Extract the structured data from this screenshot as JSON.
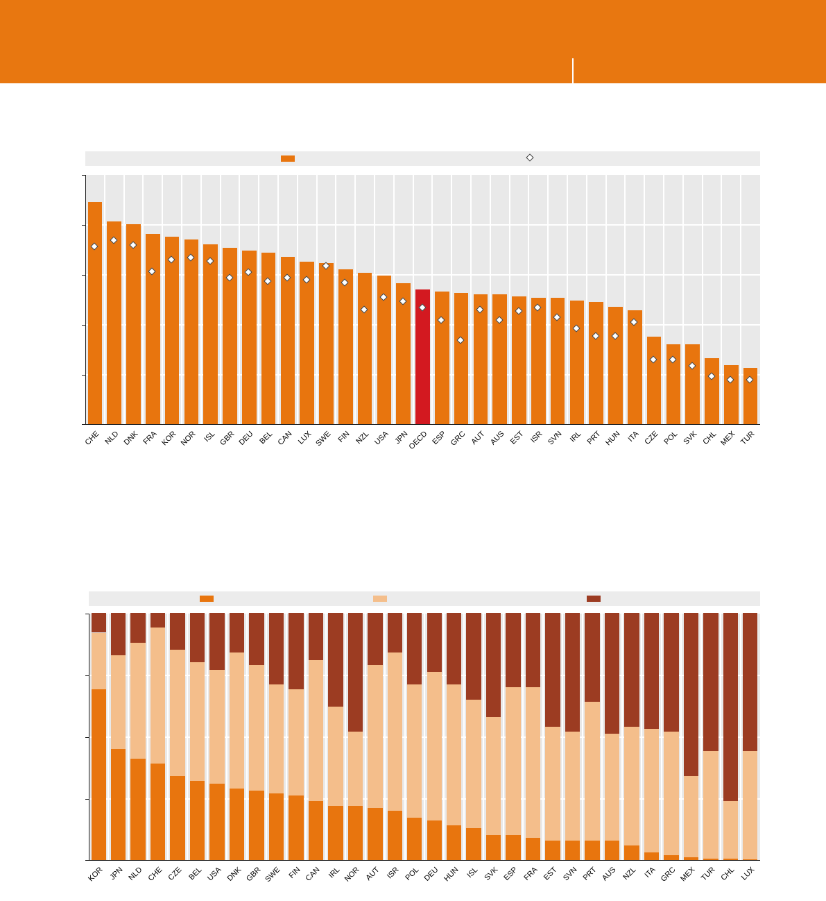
{
  "header": {
    "color": "#E87710",
    "divider_color": "#FFFFFF"
  },
  "colors": {
    "bar_orange": "#E8750E",
    "bar_red": "#D31920",
    "bar_peach": "#F4BE8B",
    "bar_brown": "#9C3C22",
    "plot_bg": "#E9E9E9",
    "legend_bg": "#ECECEC",
    "gridline": "#FFFFFF",
    "axis": "#1A1A1A",
    "diamond_fill": "#FFFFFF",
    "diamond_border": "#3C3C3C"
  },
  "chart_data": [
    {
      "type": "bar",
      "title": "",
      "xlabel": "",
      "ylabel": "",
      "ylim": [
        0,
        10
      ],
      "y_divisions": 5,
      "grid": true,
      "legend_position": "top",
      "legend": [
        {
          "marker": "bar",
          "color": "#E8750E",
          "label": ""
        },
        {
          "marker": "diamond",
          "color": "#FFFFFF",
          "label": ""
        }
      ],
      "highlight_category": "OECD",
      "highlight_color": "#D31920",
      "categories": [
        "CHE",
        "NLD",
        "DNK",
        "FRA",
        "KOR",
        "NOR",
        "ISL",
        "GBR",
        "DEU",
        "BEL",
        "CAN",
        "LUX",
        "SWE",
        "FIN",
        "NZL",
        "USA",
        "JPN",
        "OECD",
        "ESP",
        "GRC",
        "AUT",
        "AUS",
        "EST",
        "ISR",
        "SVN",
        "IRL",
        "PRT",
        "HUN",
        "ITA",
        "CZE",
        "POL",
        "SVK",
        "CHL",
        "MEX",
        "TUR"
      ],
      "series": [
        {
          "name": "bar",
          "marker": "bar",
          "values": [
            8.9,
            8.1,
            8.0,
            7.6,
            7.5,
            7.4,
            7.2,
            7.05,
            6.95,
            6.85,
            6.7,
            6.5,
            6.45,
            6.2,
            6.05,
            5.95,
            5.65,
            5.4,
            5.3,
            5.25,
            5.2,
            5.2,
            5.1,
            5.05,
            5.05,
            4.95,
            4.9,
            4.7,
            4.55,
            3.5,
            3.2,
            3.2,
            2.65,
            2.35,
            2.25
          ]
        },
        {
          "name": "diamond",
          "marker": "diamond",
          "values": [
            7.15,
            7.4,
            7.2,
            6.15,
            6.6,
            6.7,
            6.55,
            5.9,
            6.1,
            5.75,
            5.9,
            5.8,
            6.35,
            5.7,
            4.6,
            5.1,
            4.95,
            4.7,
            4.2,
            3.4,
            4.6,
            4.2,
            4.55,
            4.7,
            4.3,
            3.85,
            3.55,
            3.55,
            4.1,
            2.6,
            2.6,
            2.35,
            1.95,
            1.8,
            1.8
          ]
        }
      ]
    },
    {
      "type": "bar",
      "stacked": true,
      "title": "",
      "xlabel": "",
      "ylabel": "",
      "ylim": [
        0,
        100
      ],
      "y_divisions": 4,
      "grid": true,
      "legend_position": "top",
      "legend": [
        {
          "marker": "bar",
          "color": "#E8750E",
          "label": ""
        },
        {
          "marker": "bar",
          "color": "#F4BE8B",
          "label": ""
        },
        {
          "marker": "bar",
          "color": "#9C3C22",
          "label": ""
        }
      ],
      "categories": [
        "KOR",
        "JPN",
        "NLD",
        "CHE",
        "CZE",
        "BEL",
        "USA",
        "DNK",
        "GBR",
        "SWE",
        "FIN",
        "CAN",
        "IRL",
        "NOR",
        "AUT",
        "ISR",
        "POL",
        "DEU",
        "HUN",
        "ISL",
        "SVK",
        "ESP",
        "FRA",
        "EST",
        "SVN",
        "PRT",
        "AUS",
        "NZL",
        "ITA",
        "GRC",
        "MEX",
        "TUR",
        "CHL",
        "LUX"
      ],
      "series": [
        {
          "name": "orange",
          "color": "#E8750E",
          "values": [
            69,
            45,
            41,
            39,
            34,
            32,
            31,
            29,
            28,
            27,
            26,
            24,
            22,
            22,
            21,
            20,
            17,
            16,
            14,
            13,
            10,
            10,
            9,
            8,
            8,
            8,
            8,
            6,
            3,
            2,
            1,
            0.5,
            0.5,
            0.3
          ]
        },
        {
          "name": "peach",
          "color": "#F4BE8B",
          "values": [
            23,
            38,
            47,
            55,
            51,
            48,
            46,
            55,
            51,
            44,
            43,
            57,
            40,
            30,
            58,
            64,
            54,
            60,
            57,
            52,
            48,
            60,
            61,
            46,
            44,
            56,
            43,
            48,
            50,
            50,
            33,
            43.5,
            23.5,
            43.7
          ]
        },
        {
          "name": "brown",
          "color": "#9C3C22",
          "values": [
            8,
            17,
            12,
            6,
            15,
            20,
            23,
            16,
            21,
            29,
            31,
            19,
            38,
            48,
            21,
            16,
            29,
            24,
            29,
            35,
            42,
            30,
            30,
            46,
            48,
            36,
            49,
            46,
            47,
            48,
            66,
            56,
            76,
            56
          ]
        }
      ]
    }
  ]
}
